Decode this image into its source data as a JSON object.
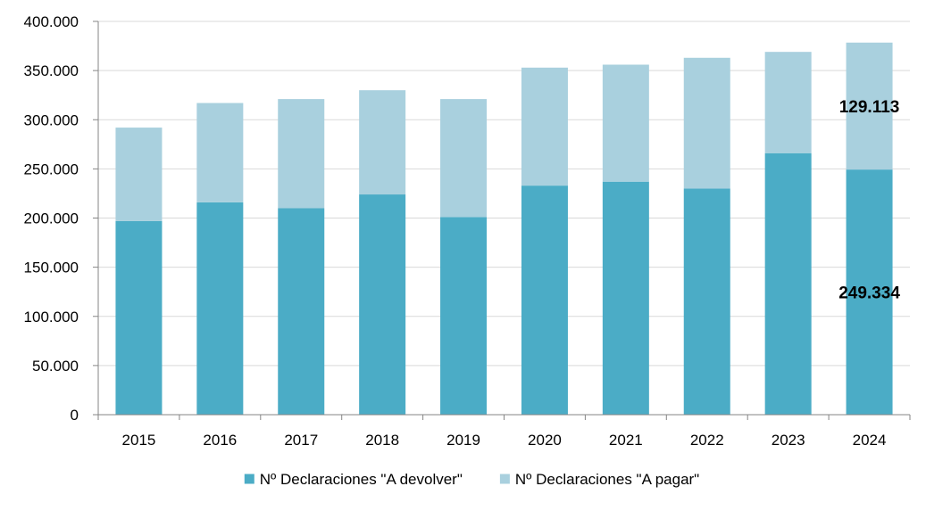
{
  "chart_data": {
    "type": "bar",
    "stacked": true,
    "categories": [
      "2015",
      "2016",
      "2017",
      "2018",
      "2019",
      "2020",
      "2021",
      "2022",
      "2023",
      "2024"
    ],
    "series": [
      {
        "name": "Nº Declaraciones \"A devolver\"",
        "color": "#4bacc6",
        "values": [
          197000,
          216000,
          210000,
          224000,
          201000,
          233000,
          237000,
          230000,
          266000,
          249334
        ]
      },
      {
        "name": "Nº Declaraciones \"A pagar\"",
        "color": "#a9d0de",
        "values": [
          95000,
          101000,
          111000,
          106000,
          120000,
          120000,
          119000,
          133000,
          103000,
          129113
        ]
      }
    ],
    "data_labels": [
      {
        "category": "2024",
        "series": 0,
        "text": "249.334"
      },
      {
        "category": "2024",
        "series": 1,
        "text": "129.113"
      }
    ],
    "ylim": [
      0,
      400000
    ],
    "yticks": [
      "0",
      "50.000",
      "100.000",
      "150.000",
      "200.000",
      "250.000",
      "300.000",
      "350.000",
      "400.000"
    ],
    "grid": true,
    "legend_position": "bottom",
    "colors": {
      "grid": "#d9d9d9",
      "axis": "#868686"
    }
  }
}
